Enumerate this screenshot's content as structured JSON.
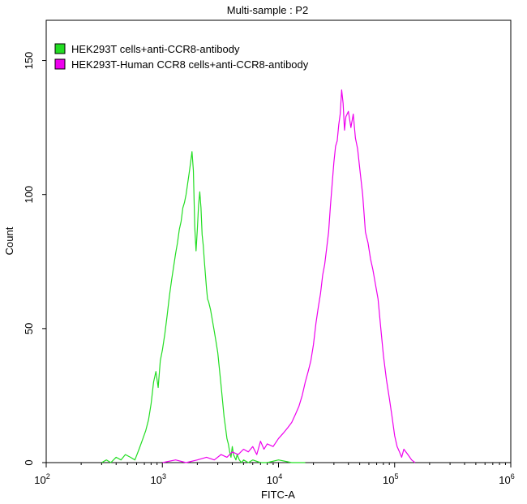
{
  "chart_data": {
    "type": "line",
    "title": "Multi-sample : P2",
    "xlabel": "FITC-A",
    "ylabel": "Count",
    "x_scale": "log",
    "xlim": [
      100,
      1000000
    ],
    "ylim": [
      0,
      165
    ],
    "x_ticks": [
      {
        "value": 100,
        "base": "10",
        "exp": "2"
      },
      {
        "value": 1000,
        "base": "10",
        "exp": "3"
      },
      {
        "value": 10000,
        "base": "10",
        "exp": "4"
      },
      {
        "value": 100000,
        "base": "10",
        "exp": "5"
      },
      {
        "value": 1000000,
        "base": "10",
        "exp": "6"
      }
    ],
    "y_ticks": [
      0,
      50,
      100,
      150
    ],
    "grid": false,
    "legend_position": "top-left",
    "series": [
      {
        "name": "HEK293T cells+anti-CCR8-antibody",
        "color": "#22dd22",
        "x": [
          300,
          330,
          360,
          400,
          440,
          480,
          530,
          580,
          630,
          680,
          720,
          760,
          800,
          840,
          880,
          920,
          960,
          1000,
          1050,
          1100,
          1150,
          1200,
          1250,
          1300,
          1350,
          1400,
          1450,
          1500,
          1550,
          1600,
          1650,
          1700,
          1750,
          1800,
          1850,
          1900,
          1950,
          2000,
          2050,
          2100,
          2150,
          2200,
          2250,
          2300,
          2350,
          2400,
          2450,
          2500,
          2600,
          2700,
          2800,
          2900,
          3000,
          3100,
          3200,
          3300,
          3400,
          3500,
          3600,
          3700,
          3800,
          3900,
          4000,
          4100,
          4200,
          4300,
          4400,
          4600,
          4800,
          5000,
          5500,
          6000,
          7000,
          8000,
          10000,
          13000,
          17000
        ],
        "y": [
          0,
          1,
          0,
          2,
          1,
          3,
          2,
          1,
          5,
          9,
          12,
          16,
          22,
          30,
          34,
          28,
          38,
          42,
          48,
          55,
          62,
          68,
          73,
          78,
          82,
          87,
          90,
          95,
          97,
          100,
          104,
          108,
          112,
          116,
          109,
          88,
          79,
          87,
          96,
          101,
          95,
          85,
          81,
          75,
          70,
          65,
          61,
          60,
          57,
          53,
          49,
          45,
          41,
          35,
          29,
          23,
          17,
          13,
          9,
          7,
          4,
          2,
          6,
          3,
          2,
          1,
          3,
          1,
          0,
          1,
          0,
          1,
          0,
          0,
          1,
          0,
          0
        ]
      },
      {
        "name": "HEK293T-Human CCR8 cells+anti-CCR8-antibody",
        "color": "#ee00ee",
        "x": [
          1000,
          1300,
          1600,
          2000,
          2400,
          2800,
          3200,
          3600,
          4000,
          4500,
          5000,
          5500,
          6000,
          6500,
          7000,
          7500,
          8000,
          9000,
          10000,
          11000,
          12000,
          13000,
          14000,
          15000,
          16000,
          17000,
          18000,
          19000,
          20000,
          21000,
          22000,
          23000,
          24000,
          25000,
          26000,
          27000,
          28000,
          29000,
          30000,
          31000,
          32000,
          33000,
          34000,
          35000,
          36000,
          37000,
          38000,
          40000,
          42000,
          44000,
          46000,
          48000,
          50000,
          53000,
          56000,
          59000,
          62000,
          65000,
          68000,
          72000,
          76000,
          80000,
          85000,
          90000,
          95000,
          100000,
          105000,
          110000,
          115000,
          120000,
          130000,
          140000,
          150000
        ],
        "y": [
          0,
          1,
          0,
          1,
          2,
          1,
          3,
          2,
          4,
          3,
          5,
          4,
          6,
          3,
          8,
          5,
          7,
          6,
          9,
          11,
          13,
          15,
          18,
          21,
          25,
          30,
          34,
          38,
          44,
          52,
          58,
          63,
          70,
          74,
          80,
          86,
          96,
          104,
          112,
          118,
          120,
          126,
          130,
          139,
          134,
          124,
          129,
          131,
          125,
          130,
          121,
          117,
          110,
          100,
          86,
          82,
          76,
          72,
          67,
          61,
          50,
          40,
          31,
          24,
          17,
          10,
          6,
          4,
          2,
          5,
          3,
          1,
          0
        ]
      }
    ]
  }
}
